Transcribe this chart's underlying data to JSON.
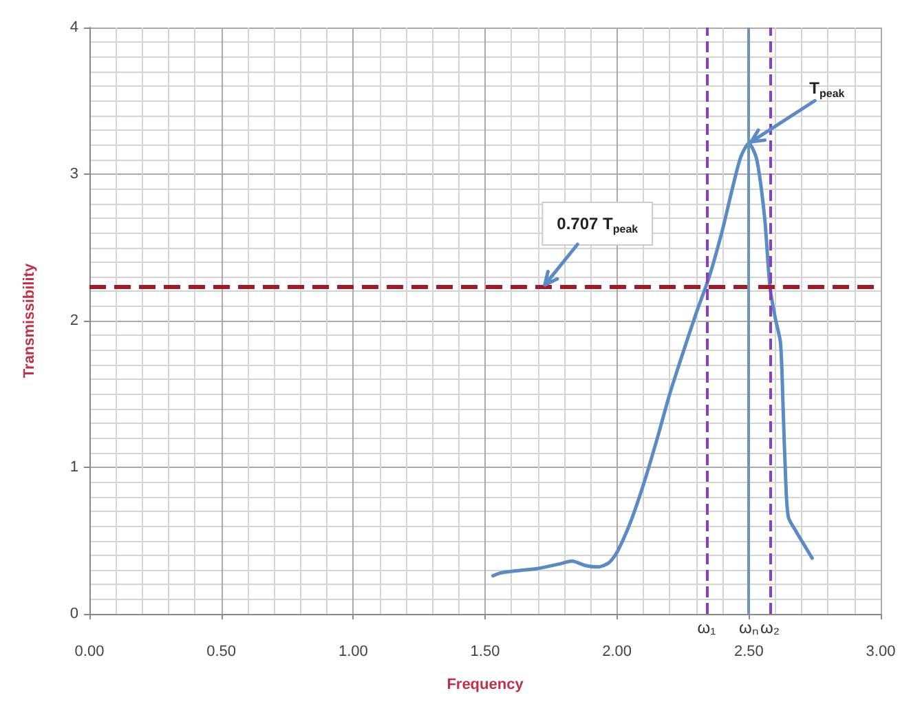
{
  "chart_data": {
    "type": "line",
    "xlabel": "Frequency",
    "ylabel": "Transmissibility",
    "x": [
      1.53,
      1.56,
      1.6,
      1.7,
      1.78,
      1.83,
      1.88,
      1.93,
      1.97,
      2.0,
      2.05,
      2.1,
      2.15,
      2.2,
      2.25,
      2.3,
      2.35,
      2.4,
      2.44,
      2.47,
      2.5,
      2.53,
      2.56,
      2.58,
      2.6,
      2.62,
      2.63,
      2.64,
      2.65,
      2.68,
      2.71,
      2.74
    ],
    "series": [
      {
        "color": "#5b8bc4",
        "values": [
          0.26,
          0.28,
          0.29,
          0.31,
          0.34,
          0.36,
          0.33,
          0.32,
          0.35,
          0.42,
          0.62,
          0.88,
          1.18,
          1.5,
          1.78,
          2.05,
          2.3,
          2.62,
          2.92,
          3.12,
          3.21,
          3.1,
          2.7,
          2.23,
          2.02,
          1.85,
          1.4,
          0.9,
          0.66,
          0.56,
          0.47,
          0.38
        ]
      }
    ],
    "xlim": [
      0,
      3
    ],
    "xticks": [
      {
        "value": 0,
        "label": "0.00"
      },
      {
        "value": 0.5,
        "label": "0.50"
      },
      {
        "value": 1,
        "label": "1.00"
      },
      {
        "value": 1.5,
        "label": "1.50"
      },
      {
        "value": 2,
        "label": "2.00"
      },
      {
        "value": 2.5,
        "label": "2.50"
      },
      {
        "value": 3,
        "label": "3.00"
      }
    ],
    "ylim": [
      0,
      4
    ],
    "yticks": [
      0,
      1,
      2,
      3,
      4
    ],
    "grid": true,
    "marker": "none",
    "line_style": "solid",
    "ref_lines": [
      {
        "axis": "y",
        "value": 2.23,
        "color": "#9e1c2a",
        "line_style": "dashed"
      },
      {
        "axis": "x",
        "value": 2.34,
        "label": "ω₁",
        "color": "#8a3fc0",
        "line_style": "dashed"
      },
      {
        "axis": "x",
        "value": 2.5,
        "label": "ωₙ",
        "color": "#6e93bd",
        "line_style": "solid"
      },
      {
        "axis": "x",
        "value": 2.58,
        "label": "ω₂",
        "color": "#8a3fc0",
        "line_style": "dashed"
      }
    ],
    "annotations": [
      {
        "text": "T$_{peak}$",
        "x": 2.5,
        "y": 3.21
      },
      {
        "text": "0.707 T$_{peak}$",
        "x": 1.72,
        "y": 2.23
      }
    ]
  }
}
